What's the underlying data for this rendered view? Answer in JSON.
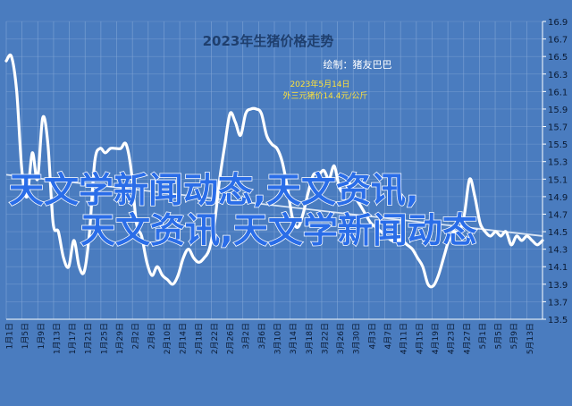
{
  "chart_data": {
    "type": "line",
    "title": "2023年生猪价格走势",
    "subtitle": "绘制：猪友巴巴",
    "annotation_line1": "2023年5月14日",
    "annotation_line2": "外三元猪价14.4元/公斤",
    "overlay_text_line1": "天文学新闻动态,天文资讯,",
    "overlay_text_line2": "天文资讯,天文学新闻动态",
    "ylim": [
      13.5,
      16.9
    ],
    "yticks": [
      13.5,
      13.7,
      13.9,
      14.1,
      14.3,
      14.5,
      14.7,
      14.9,
      15.1,
      15.3,
      15.5,
      15.7,
      15.9,
      16.1,
      16.3,
      16.5,
      16.7,
      16.9
    ],
    "x_tick_labels": [
      "1月1日",
      "1月5日",
      "1月9日",
      "1月13日",
      "1月17日",
      "1月21日",
      "1月25日",
      "1月29日",
      "2月2日",
      "2月6日",
      "2月10日",
      "2月14日",
      "2月18日",
      "2月22日",
      "2月26日",
      "3月2日",
      "3月6日",
      "3月10日",
      "3月14日",
      "3月18日",
      "3月22日",
      "3月26日",
      "3月30日",
      "4月3日",
      "4月7日",
      "4月11日",
      "4月15日",
      "4月19日",
      "4月23日",
      "4月27日",
      "5月1日",
      "5月5日",
      "5月9日",
      "5月13日"
    ],
    "series": [
      {
        "values": [
          16.45,
          16.5,
          16.1,
          15.2,
          14.9,
          15.4,
          15.1,
          15.8,
          15.5,
          14.6,
          14.5,
          14.2,
          14.1,
          14.4,
          14.1,
          14.05,
          14.5,
          15.3,
          15.45,
          15.4,
          15.45,
          15.45,
          15.45,
          15.5,
          15.2,
          14.6,
          14.45,
          14.15,
          14.0,
          14.1,
          14.0,
          13.95,
          13.9,
          14.0,
          14.2,
          14.3,
          14.2,
          14.15,
          14.2,
          14.3,
          14.6,
          15.1,
          15.5,
          15.85,
          15.75,
          15.6,
          15.85,
          15.9,
          15.9,
          15.85,
          15.6,
          15.5,
          15.45,
          15.3,
          15.0,
          14.65,
          14.55,
          14.7,
          14.95,
          15.15,
          15.15,
          15.2,
          15.1,
          15.25,
          15.0,
          14.95,
          15.05,
          14.9,
          14.8,
          14.7,
          14.6,
          14.55,
          14.5,
          14.45,
          14.4,
          14.4,
          14.4,
          14.35,
          14.3,
          14.2,
          14.1,
          13.9,
          13.88,
          14.0,
          14.2,
          14.4,
          14.5,
          14.5,
          14.7,
          15.1,
          14.9,
          14.6,
          14.5,
          14.45,
          14.5,
          14.45,
          14.5,
          14.35,
          14.45,
          14.4,
          14.45,
          14.4,
          14.35,
          14.4
        ]
      }
    ],
    "trend_line": {
      "start": 15.15,
      "end": 14.45
    },
    "grid": true,
    "colors": {
      "background": "#4a7cbf",
      "line": "#ffffff",
      "trend": "#dbe6f5",
      "title": "#1f3f6e",
      "subtitle": "#ffffff",
      "annotation": "#ffe23a",
      "overlay_fill": "#2a6de8",
      "overlay_stroke": "#ffffff",
      "grid": "#86a9d8",
      "axis": "#ffffff",
      "ticks": "#0a1a33"
    }
  }
}
